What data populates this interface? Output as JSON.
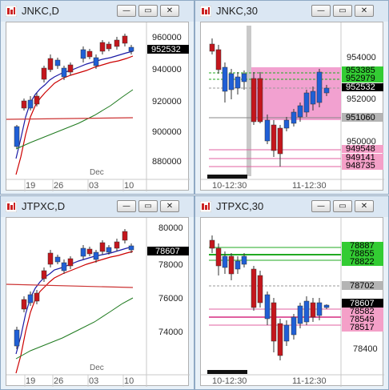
{
  "windows": [
    {
      "id": "jnkc-d",
      "title": "JNKC,D",
      "price_axis": [
        "960000",
        "940000",
        "920000",
        "900000",
        "880000"
      ],
      "price_tags": [
        {
          "label": "952532",
          "fg": "#ffffff",
          "bg": "#000000"
        }
      ],
      "time_axis": [
        "19",
        "26",
        "03",
        "10"
      ],
      "time_note": "Dec"
    },
    {
      "id": "jnkc-30",
      "title": "JNKC,30",
      "price_axis": [
        "954000",
        "952000",
        "950000"
      ],
      "price_tags": [
        {
          "label": "953385",
          "fg": "#000000",
          "bg": "#33cc33"
        },
        {
          "label": "952979",
          "fg": "#000000",
          "bg": "#33cc33"
        },
        {
          "label": "952532",
          "fg": "#ffffff",
          "bg": "#000000"
        },
        {
          "label": "951060",
          "fg": "#000000",
          "bg": "#b4b4b4"
        },
        {
          "label": "949548",
          "fg": "#000000",
          "bg": "#f4a0c8"
        },
        {
          "label": "949141",
          "fg": "#000000",
          "bg": "#f4a0c8"
        },
        {
          "label": "948735",
          "fg": "#000000",
          "bg": "#f4a0c8"
        }
      ],
      "time_axis": [
        "10-12:30",
        "11-12:30"
      ]
    },
    {
      "id": "jtpxc-d",
      "title": "JTPXC,D",
      "price_axis": [
        "80000",
        "78000",
        "76000",
        "74000"
      ],
      "price_tags": [
        {
          "label": "78607",
          "fg": "#ffffff",
          "bg": "#000000"
        }
      ],
      "time_axis": [
        "19",
        "26",
        "03",
        "10"
      ],
      "time_note": "Dec"
    },
    {
      "id": "jtpxc-30",
      "title": "JTPXC,30",
      "price_axis": [
        "78400"
      ],
      "price_tags": [
        {
          "label": "78887",
          "fg": "#000000",
          "bg": "#33cc33"
        },
        {
          "label": "78855",
          "fg": "#000000",
          "bg": "#33cc33"
        },
        {
          "label": "78822",
          "fg": "#000000",
          "bg": "#33cc33"
        },
        {
          "label": "78702",
          "fg": "#000000",
          "bg": "#b4b4b4"
        },
        {
          "label": "78607",
          "fg": "#ffffff",
          "bg": "#000000"
        },
        {
          "label": "78582",
          "fg": "#000000",
          "bg": "#f4a0c8"
        },
        {
          "label": "78549",
          "fg": "#000000",
          "bg": "#f4a0c8"
        },
        {
          "label": "78517",
          "fg": "#000000",
          "bg": "#f4a0c8"
        }
      ],
      "time_axis": [
        "10-12:30",
        "11-12:30"
      ]
    }
  ],
  "window_buttons": {
    "minimize": "—",
    "restore": "▭",
    "close": "✕"
  },
  "colors": {
    "bull_candle": "#1f5fd6",
    "bear_candle": "#c4161c",
    "ma_fast": "#1a1aa6",
    "ma_mid": "#cc0000",
    "ma_slow": "#1e7a1e",
    "ma_flat": "#cc3333",
    "resistance_line": "#22aa22",
    "support_line": "#e060a0",
    "pivot_line": "#999999",
    "zone_fill": "#f090c8"
  }
}
